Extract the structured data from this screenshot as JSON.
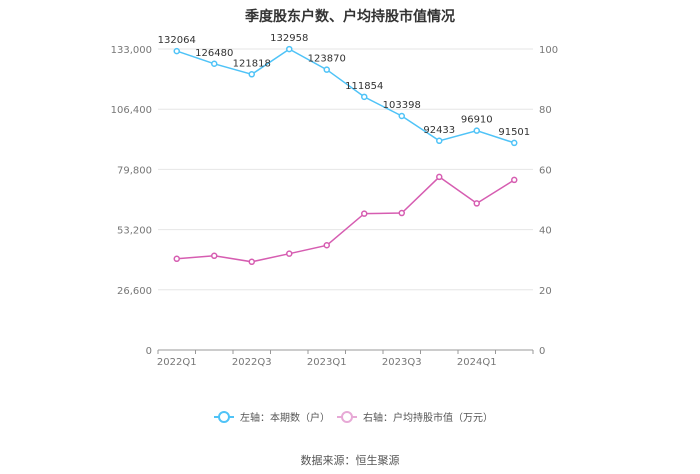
{
  "title": "季度股东户数、户均持股市值情况",
  "source": "数据来源：恒生聚源",
  "chart_data": {
    "type": "line",
    "x": [
      "2022Q1",
      "2022Q2",
      "2022Q3",
      "2022Q4",
      "2023Q1",
      "2023Q2",
      "2023Q3",
      "2023Q4",
      "2024Q1",
      "2024Q2"
    ],
    "x_tick_labels": [
      "2022Q1",
      "2022Q3",
      "2023Q1",
      "2023Q3",
      "2024Q1"
    ],
    "left_axis": {
      "min": 0,
      "max": 133000,
      "ticks": [
        "0",
        "26,600",
        "53,200",
        "79,800",
        "106,400",
        "133,000"
      ]
    },
    "right_axis": {
      "min": 0,
      "max": 100,
      "ticks": [
        "0",
        "20",
        "40",
        "60",
        "80",
        "100"
      ]
    },
    "grid": true,
    "legend_position": "bottom",
    "series": [
      {
        "name": "左轴：本期数（户）",
        "axis": "left",
        "color": "#4fc3f7",
        "values": [
          132064,
          126480,
          121818,
          132958,
          123870,
          111854,
          103398,
          92433,
          96910,
          91501
        ],
        "labels": [
          "132064",
          "126480",
          "121818",
          "132958",
          "123870",
          "111854",
          "103398",
          "92433",
          "96910",
          "91501"
        ]
      },
      {
        "name": "右轴：户均持股市值（万元）",
        "axis": "right",
        "color": "#d65db1",
        "values": [
          30.3,
          31.3,
          29.3,
          32.0,
          34.8,
          45.3,
          45.5,
          57.5,
          48.7,
          56.5
        ]
      }
    ]
  }
}
